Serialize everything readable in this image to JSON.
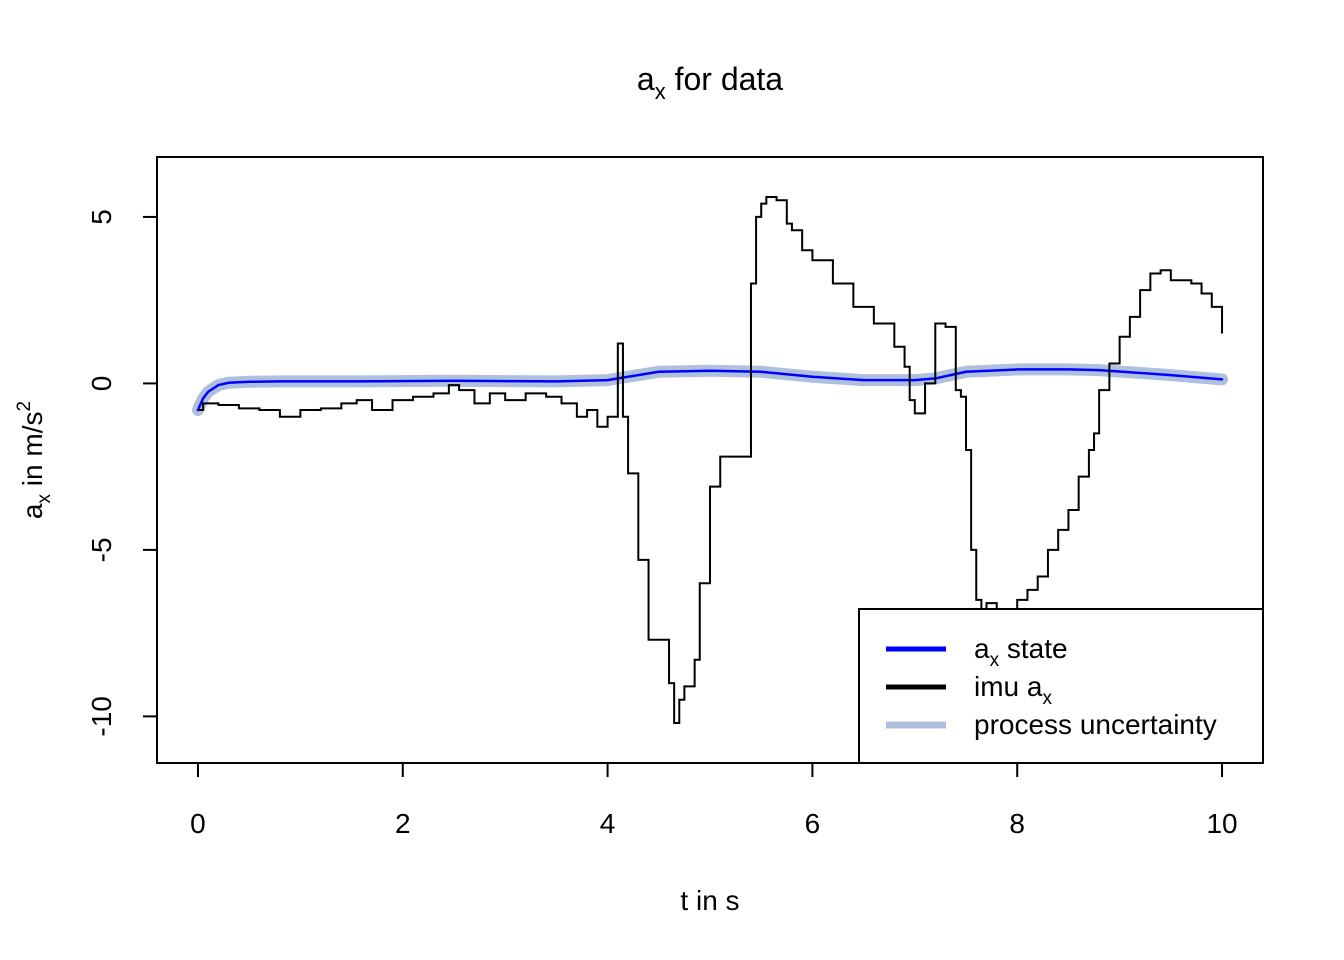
{
  "chart_data": {
    "type": "line",
    "title": {
      "main": "a",
      "sub": "x",
      "rest": " for data"
    },
    "xlabel": "t in s",
    "ylabel": {
      "main": "a",
      "sub": "x",
      "mid": " in m/s",
      "sup": "2"
    },
    "xlim": [
      -0.4,
      10.4
    ],
    "ylim": [
      -11.4,
      6.8
    ],
    "x_ticks": [
      0,
      2,
      4,
      6,
      8,
      10
    ],
    "x_tick_labels": [
      "0",
      "2",
      "4",
      "6",
      "8",
      "10"
    ],
    "y_ticks": [
      5,
      0,
      -5,
      -10
    ],
    "y_tick_labels": [
      "5",
      "0",
      "-5",
      "-10"
    ],
    "grid": false,
    "legend_position": "bottom-right",
    "colors": {
      "state": "#0000ff",
      "imu": "#000000",
      "uncertainty": "#aec0de"
    },
    "series": [
      {
        "key": "uncertainty",
        "legend": {
          "main": "process uncertainty",
          "sub": ""
        },
        "style": "band",
        "x": [
          0,
          0.05,
          0.1,
          0.2,
          0.3,
          0.5,
          0.8,
          1.5,
          2.5,
          3.5,
          4.0,
          4.2,
          4.5,
          5.0,
          5.5,
          6.0,
          6.5,
          7.0,
          7.2,
          7.5,
          8.0,
          8.5,
          8.8,
          9.5,
          10.0
        ],
        "values": [
          -0.8,
          -0.45,
          -0.25,
          -0.05,
          0.02,
          0.05,
          0.06,
          0.06,
          0.08,
          0.06,
          0.1,
          0.2,
          0.35,
          0.38,
          0.35,
          0.2,
          0.1,
          0.1,
          0.15,
          0.35,
          0.42,
          0.42,
          0.4,
          0.25,
          0.12
        ]
      },
      {
        "key": "state",
        "legend": {
          "main": "a",
          "sub": "x",
          "rest": " state"
        },
        "style": "line",
        "x": [
          0,
          0.05,
          0.1,
          0.2,
          0.3,
          0.5,
          0.8,
          1.5,
          2.5,
          3.5,
          4.0,
          4.2,
          4.5,
          5.0,
          5.5,
          6.0,
          6.5,
          7.0,
          7.2,
          7.5,
          8.0,
          8.5,
          8.8,
          9.5,
          10.0
        ],
        "values": [
          -0.8,
          -0.45,
          -0.25,
          -0.05,
          0.02,
          0.05,
          0.06,
          0.06,
          0.08,
          0.06,
          0.1,
          0.2,
          0.35,
          0.38,
          0.35,
          0.2,
          0.1,
          0.1,
          0.15,
          0.35,
          0.42,
          0.42,
          0.4,
          0.25,
          0.12
        ]
      },
      {
        "key": "imu",
        "legend": {
          "main": "imu ",
          "sub": "x",
          "pre": "a"
        },
        "style": "step",
        "x": [
          0,
          0.05,
          0.2,
          0.4,
          0.6,
          0.8,
          1.0,
          1.2,
          1.4,
          1.55,
          1.7,
          1.9,
          2.1,
          2.3,
          2.45,
          2.55,
          2.7,
          2.85,
          3.0,
          3.2,
          3.4,
          3.55,
          3.7,
          3.8,
          3.9,
          4.0,
          4.1,
          4.15,
          4.2,
          4.3,
          4.4,
          4.5,
          4.6,
          4.65,
          4.7,
          4.75,
          4.85,
          4.9,
          5.0,
          5.1,
          5.2,
          5.3,
          5.4,
          5.45,
          5.5,
          5.55,
          5.65,
          5.75,
          5.8,
          5.9,
          6.0,
          6.2,
          6.4,
          6.6,
          6.8,
          6.9,
          6.95,
          7.0,
          7.1,
          7.2,
          7.3,
          7.4,
          7.45,
          7.5,
          7.55,
          7.6,
          7.65,
          7.7,
          7.8,
          7.9,
          8.0,
          8.1,
          8.2,
          8.3,
          8.4,
          8.5,
          8.6,
          8.7,
          8.75,
          8.8,
          8.9,
          9.0,
          9.1,
          9.2,
          9.3,
          9.4,
          9.5,
          9.7,
          9.8,
          9.9,
          10.0
        ],
        "values": [
          -0.8,
          -0.6,
          -0.65,
          -0.75,
          -0.8,
          -1.0,
          -0.8,
          -0.75,
          -0.6,
          -0.5,
          -0.8,
          -0.5,
          -0.4,
          -0.3,
          -0.05,
          -0.2,
          -0.6,
          -0.3,
          -0.5,
          -0.3,
          -0.4,
          -0.6,
          -1.0,
          -0.8,
          -1.3,
          -1.0,
          1.2,
          -1.0,
          -2.7,
          -5.3,
          -7.7,
          -7.7,
          -9.0,
          -10.2,
          -9.5,
          -9.1,
          -8.3,
          -6.0,
          -3.1,
          -2.2,
          -2.2,
          -2.2,
          3.0,
          5.0,
          5.4,
          5.6,
          5.5,
          4.8,
          4.6,
          4.0,
          3.7,
          3.0,
          2.3,
          1.8,
          1.1,
          0.5,
          -0.5,
          -0.9,
          0.0,
          1.8,
          1.7,
          -0.2,
          -0.4,
          -2.0,
          -5.0,
          -6.5,
          -7.0,
          -6.6,
          -6.8,
          -6.8,
          -6.5,
          -6.2,
          -5.8,
          -5.0,
          -4.4,
          -3.8,
          -2.8,
          -2.0,
          -1.5,
          -0.2,
          0.6,
          1.4,
          2.0,
          2.8,
          3.3,
          3.4,
          3.1,
          3.0,
          2.7,
          2.3,
          1.5
        ]
      }
    ]
  }
}
